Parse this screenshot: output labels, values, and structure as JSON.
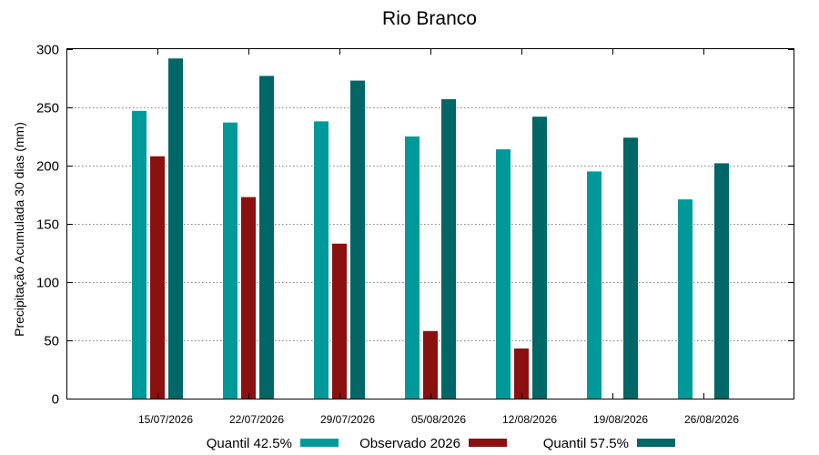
{
  "chart_data": {
    "type": "bar",
    "title": "Rio Branco",
    "xlabel": "",
    "ylabel": "Precipitação Acumulada 30 dias (mm)",
    "ylim": [
      0,
      300
    ],
    "yticks": [
      0,
      50,
      100,
      150,
      200,
      250,
      300
    ],
    "grid": true,
    "legend_position": "bottom",
    "categories": [
      "15/07/2026",
      "22/07/2026",
      "29/07/2026",
      "05/08/2026",
      "12/08/2026",
      "19/08/2026",
      "26/08/2026"
    ],
    "series": [
      {
        "name": "Quantil 42.5%",
        "color": "#009999",
        "values": [
          247,
          237,
          238,
          225,
          214,
          195,
          171
        ]
      },
      {
        "name": "Observado 2026",
        "color": "#8b1010",
        "values": [
          208,
          173,
          133,
          58,
          43,
          null,
          null
        ]
      },
      {
        "name": "Quantil 57.5%",
        "color": "#006666",
        "values": [
          292,
          277,
          273,
          257,
          242,
          224,
          202
        ]
      }
    ]
  }
}
